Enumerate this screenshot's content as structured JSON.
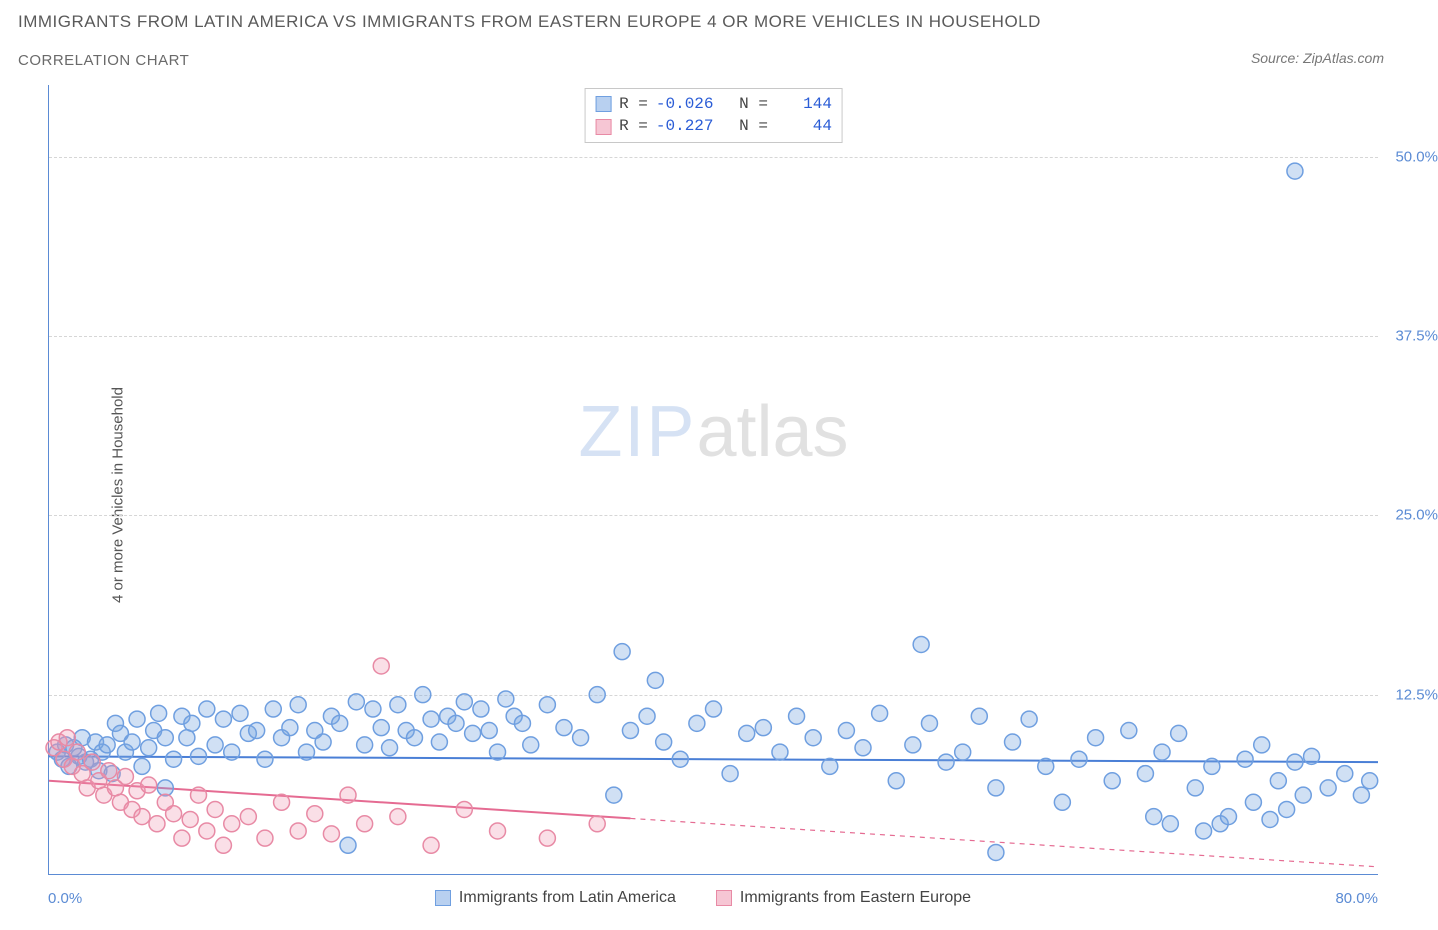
{
  "title": "IMMIGRANTS FROM LATIN AMERICA VS IMMIGRANTS FROM EASTERN EUROPE 4 OR MORE VEHICLES IN HOUSEHOLD",
  "subtitle": "CORRELATION CHART",
  "source": "Source: ZipAtlas.com",
  "ylabel": "4 or more Vehicles in Household",
  "watermark_zip": "ZIP",
  "watermark_atlas": "atlas",
  "chart": {
    "type": "scatter",
    "xlim": [
      0,
      80
    ],
    "ylim": [
      0,
      55
    ],
    "x_axis_min_label": "0.0%",
    "x_axis_max_label": "80.0%",
    "y_ticks": [
      {
        "v": 12.5,
        "label": "12.5%"
      },
      {
        "v": 25.0,
        "label": "25.0%"
      },
      {
        "v": 37.5,
        "label": "37.5%"
      },
      {
        "v": 50.0,
        "label": "50.0%"
      }
    ],
    "marker_radius": 8,
    "marker_stroke_width": 1.5,
    "background_color": "#ffffff",
    "grid_color": "#d6d6d6",
    "axis_color": "#5b8bd4",
    "tick_label_color": "#5b8bd4",
    "series": [
      {
        "name": "Immigrants from Latin America",
        "fill": "rgba(120,165,224,0.35)",
        "stroke": "#6f9fe0",
        "swatch_fill": "#b8d0f0",
        "swatch_stroke": "#6f9fe0",
        "R": "-0.026",
        "N": "144",
        "trend": {
          "y_at_x0": 8.2,
          "y_at_x80": 7.8,
          "solid_until_x": 80,
          "color": "#4a7fd6",
          "width": 2
        },
        "points": [
          [
            0.5,
            8.5
          ],
          [
            0.8,
            8.0
          ],
          [
            1.0,
            9.0
          ],
          [
            1.2,
            7.5
          ],
          [
            1.5,
            8.8
          ],
          [
            1.8,
            8.2
          ],
          [
            2.0,
            9.5
          ],
          [
            2.2,
            7.8
          ],
          [
            2.5,
            8.0
          ],
          [
            2.8,
            9.2
          ],
          [
            3.0,
            7.2
          ],
          [
            3.2,
            8.5
          ],
          [
            3.5,
            9.0
          ],
          [
            3.8,
            7.0
          ],
          [
            4.0,
            10.5
          ],
          [
            4.3,
            9.8
          ],
          [
            4.6,
            8.5
          ],
          [
            5.0,
            9.2
          ],
          [
            5.3,
            10.8
          ],
          [
            5.6,
            7.5
          ],
          [
            6.0,
            8.8
          ],
          [
            6.3,
            10.0
          ],
          [
            6.6,
            11.2
          ],
          [
            7.0,
            9.5
          ],
          [
            7.0,
            6.0
          ],
          [
            7.5,
            8.0
          ],
          [
            8.0,
            11.0
          ],
          [
            8.3,
            9.5
          ],
          [
            8.6,
            10.5
          ],
          [
            9.0,
            8.2
          ],
          [
            9.5,
            11.5
          ],
          [
            10.0,
            9.0
          ],
          [
            10.5,
            10.8
          ],
          [
            11.0,
            8.5
          ],
          [
            11.5,
            11.2
          ],
          [
            12.0,
            9.8
          ],
          [
            12.5,
            10.0
          ],
          [
            13.0,
            8.0
          ],
          [
            13.5,
            11.5
          ],
          [
            14.0,
            9.5
          ],
          [
            14.5,
            10.2
          ],
          [
            15.0,
            11.8
          ],
          [
            15.5,
            8.5
          ],
          [
            16.0,
            10.0
          ],
          [
            16.5,
            9.2
          ],
          [
            17.0,
            11.0
          ],
          [
            17.5,
            10.5
          ],
          [
            18.0,
            2.0
          ],
          [
            18.5,
            12.0
          ],
          [
            19.0,
            9.0
          ],
          [
            19.5,
            11.5
          ],
          [
            20.0,
            10.2
          ],
          [
            20.5,
            8.8
          ],
          [
            21.0,
            11.8
          ],
          [
            21.5,
            10.0
          ],
          [
            22.0,
            9.5
          ],
          [
            22.5,
            12.5
          ],
          [
            23.0,
            10.8
          ],
          [
            23.5,
            9.2
          ],
          [
            24.0,
            11.0
          ],
          [
            24.5,
            10.5
          ],
          [
            25.0,
            12.0
          ],
          [
            25.5,
            9.8
          ],
          [
            26.0,
            11.5
          ],
          [
            26.5,
            10.0
          ],
          [
            27.0,
            8.5
          ],
          [
            27.5,
            12.2
          ],
          [
            28.0,
            11.0
          ],
          [
            28.5,
            10.5
          ],
          [
            29.0,
            9.0
          ],
          [
            30.0,
            11.8
          ],
          [
            31.0,
            10.2
          ],
          [
            32.0,
            9.5
          ],
          [
            33.0,
            12.5
          ],
          [
            34.0,
            5.5
          ],
          [
            34.5,
            15.5
          ],
          [
            35.0,
            10.0
          ],
          [
            36.0,
            11.0
          ],
          [
            36.5,
            13.5
          ],
          [
            37.0,
            9.2
          ],
          [
            38.0,
            8.0
          ],
          [
            39.0,
            10.5
          ],
          [
            40.0,
            11.5
          ],
          [
            41.0,
            7.0
          ],
          [
            42.0,
            9.8
          ],
          [
            43.0,
            10.2
          ],
          [
            44.0,
            8.5
          ],
          [
            45.0,
            11.0
          ],
          [
            46.0,
            9.5
          ],
          [
            47.0,
            7.5
          ],
          [
            48.0,
            10.0
          ],
          [
            49.0,
            8.8
          ],
          [
            50.0,
            11.2
          ],
          [
            51.0,
            6.5
          ],
          [
            52.0,
            9.0
          ],
          [
            52.5,
            16.0
          ],
          [
            53.0,
            10.5
          ],
          [
            54.0,
            7.8
          ],
          [
            55.0,
            8.5
          ],
          [
            56.0,
            11.0
          ],
          [
            57.0,
            6.0
          ],
          [
            58.0,
            9.2
          ],
          [
            59.0,
            10.8
          ],
          [
            60.0,
            7.5
          ],
          [
            61.0,
            5.0
          ],
          [
            62.0,
            8.0
          ],
          [
            63.0,
            9.5
          ],
          [
            64.0,
            6.5
          ],
          [
            65.0,
            10.0
          ],
          [
            66.0,
            7.0
          ],
          [
            66.5,
            4.0
          ],
          [
            67.0,
            8.5
          ],
          [
            67.5,
            3.5
          ],
          [
            68.0,
            9.8
          ],
          [
            69.0,
            6.0
          ],
          [
            69.5,
            3.0
          ],
          [
            70.0,
            7.5
          ],
          [
            70.5,
            3.5
          ],
          [
            71.0,
            4.0
          ],
          [
            72.0,
            8.0
          ],
          [
            72.5,
            5.0
          ],
          [
            73.0,
            9.0
          ],
          [
            73.5,
            3.8
          ],
          [
            74.0,
            6.5
          ],
          [
            74.5,
            4.5
          ],
          [
            75.0,
            7.8
          ],
          [
            75.5,
            5.5
          ],
          [
            76.0,
            8.2
          ],
          [
            77.0,
            6.0
          ],
          [
            78.0,
            7.0
          ],
          [
            79.0,
            5.5
          ],
          [
            79.5,
            6.5
          ],
          [
            75.0,
            49.0
          ],
          [
            57.0,
            1.5
          ]
        ]
      },
      {
        "name": "Immigrants from Eastern Europe",
        "fill": "rgba(240,150,175,0.30)",
        "stroke": "#e88aa5",
        "swatch_fill": "#f6c6d4",
        "swatch_stroke": "#e88aa5",
        "R": "-0.227",
        "N": "44",
        "trend": {
          "y_at_x0": 6.5,
          "y_at_x80": 0.5,
          "solid_until_x": 35,
          "color": "#e56b92",
          "width": 2
        },
        "points": [
          [
            0.3,
            8.8
          ],
          [
            0.6,
            9.2
          ],
          [
            0.9,
            8.0
          ],
          [
            1.1,
            9.5
          ],
          [
            1.4,
            7.5
          ],
          [
            1.7,
            8.5
          ],
          [
            2.0,
            7.0
          ],
          [
            2.3,
            6.0
          ],
          [
            2.6,
            7.8
          ],
          [
            3.0,
            6.5
          ],
          [
            3.3,
            5.5
          ],
          [
            3.6,
            7.2
          ],
          [
            4.0,
            6.0
          ],
          [
            4.3,
            5.0
          ],
          [
            4.6,
            6.8
          ],
          [
            5.0,
            4.5
          ],
          [
            5.3,
            5.8
          ],
          [
            5.6,
            4.0
          ],
          [
            6.0,
            6.2
          ],
          [
            6.5,
            3.5
          ],
          [
            7.0,
            5.0
          ],
          [
            7.5,
            4.2
          ],
          [
            8.0,
            2.5
          ],
          [
            8.5,
            3.8
          ],
          [
            9.0,
            5.5
          ],
          [
            9.5,
            3.0
          ],
          [
            10.0,
            4.5
          ],
          [
            10.5,
            2.0
          ],
          [
            11.0,
            3.5
          ],
          [
            12.0,
            4.0
          ],
          [
            13.0,
            2.5
          ],
          [
            14.0,
            5.0
          ],
          [
            15.0,
            3.0
          ],
          [
            16.0,
            4.2
          ],
          [
            17.0,
            2.8
          ],
          [
            18.0,
            5.5
          ],
          [
            19.0,
            3.5
          ],
          [
            20.0,
            14.5
          ],
          [
            21.0,
            4.0
          ],
          [
            23.0,
            2.0
          ],
          [
            25.0,
            4.5
          ],
          [
            27.0,
            3.0
          ],
          [
            30.0,
            2.5
          ],
          [
            33.0,
            3.5
          ]
        ]
      }
    ],
    "stats_labels": {
      "R": "R =",
      "N": "N ="
    }
  },
  "legend": {
    "series1": "Immigrants from Latin America",
    "series2": "Immigrants from Eastern Europe"
  }
}
